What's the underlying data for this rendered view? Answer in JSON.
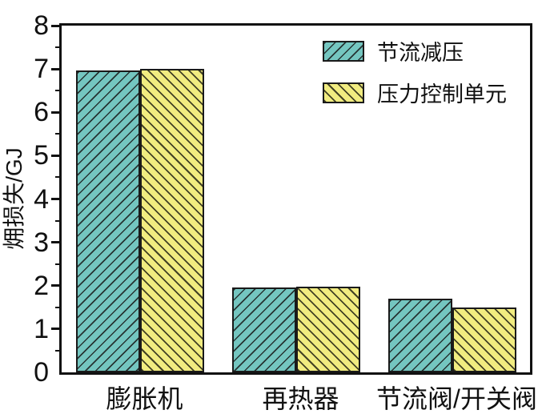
{
  "chart_data": {
    "type": "bar",
    "title": "",
    "xlabel": "",
    "ylabel": "㶲损失/GJ",
    "categories": [
      "膨胀机",
      "再热器",
      "节流阀/开关阀"
    ],
    "series": [
      {
        "name": "节流减压",
        "values": [
          6.97,
          1.95,
          1.7
        ],
        "color": "#74c6c0",
        "hatch": "forward-diagonal"
      },
      {
        "name": "压力控制单元",
        "values": [
          7.0,
          1.97,
          1.5
        ],
        "color": "#f1ec80",
        "hatch": "back-diagonal"
      }
    ],
    "ylim": [
      0,
      8
    ],
    "yticks": [
      0,
      1,
      2,
      3,
      4,
      5,
      6,
      7,
      8
    ],
    "minor_ticks_at_halves": true,
    "grid": false,
    "legend_position": "top-right"
  },
  "colors": {
    "axis": "#111111",
    "bar_border": "#1a1a1a",
    "background": "#ffffff"
  }
}
